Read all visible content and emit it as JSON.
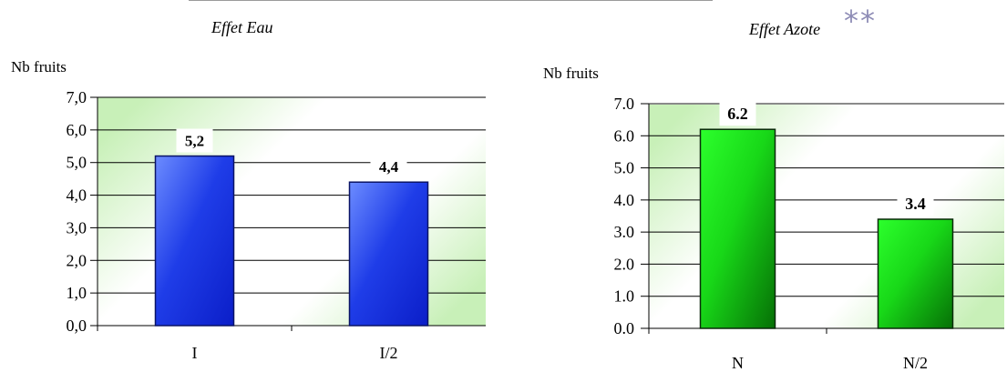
{
  "chart_data": [
    {
      "type": "bar",
      "title": "Effet Eau",
      "ylabel": "Nb fruits",
      "xlabel": "",
      "categories": [
        "I",
        "I/2"
      ],
      "values": [
        5.2,
        4.4
      ],
      "data_labels": [
        "5,2",
        "4,4"
      ],
      "ylim": [
        0,
        7
      ],
      "yticks": [
        "0,0",
        "1,0",
        "2,0",
        "3,0",
        "4,0",
        "5,0",
        "6,0",
        "7,0"
      ],
      "grid": true,
      "bar_color": "#1f3de8",
      "plot_gradient": [
        "#ffffff",
        "#c8f0b8"
      ]
    },
    {
      "type": "bar",
      "title": "Effet Azote",
      "significance": "**",
      "ylabel": "Nb fruits",
      "xlabel": "",
      "categories": [
        "N",
        "N/2"
      ],
      "values": [
        6.2,
        3.4
      ],
      "data_labels": [
        "6.2",
        "3.4"
      ],
      "ylim": [
        0,
        7
      ],
      "yticks": [
        "0.0",
        "1.0",
        "2.0",
        "3.0",
        "4.0",
        "5.0",
        "6.0",
        "7.0"
      ],
      "grid": true,
      "bar_color": "#18d818",
      "plot_gradient": [
        "#ffffff",
        "#c8f0b8"
      ]
    }
  ]
}
